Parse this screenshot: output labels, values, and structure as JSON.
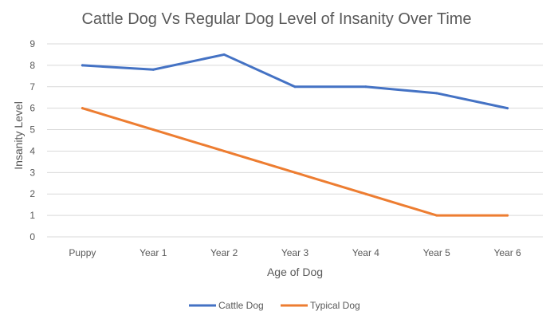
{
  "chart_data": {
    "type": "line",
    "title": "Cattle Dog Vs Regular Dog Level of Insanity Over Time",
    "xlabel": "Age of Dog",
    "ylabel": "Insanity Level",
    "categories": [
      "Puppy",
      "Year 1",
      "Year 2",
      "Year 3",
      "Year 4",
      "Year 5",
      "Year 6"
    ],
    "ylim": [
      0,
      9
    ],
    "yticks": [
      0,
      1,
      2,
      3,
      4,
      5,
      6,
      7,
      8,
      9
    ],
    "grid": true,
    "legend_position": "bottom",
    "series": [
      {
        "name": "Cattle Dog",
        "color": "#4472C4",
        "values": [
          8,
          7.8,
          8.5,
          7,
          7,
          6.7,
          6
        ]
      },
      {
        "name": "Typical Dog",
        "color": "#ED7D31",
        "values": [
          6,
          5,
          4,
          3,
          2,
          1,
          1
        ]
      }
    ]
  }
}
